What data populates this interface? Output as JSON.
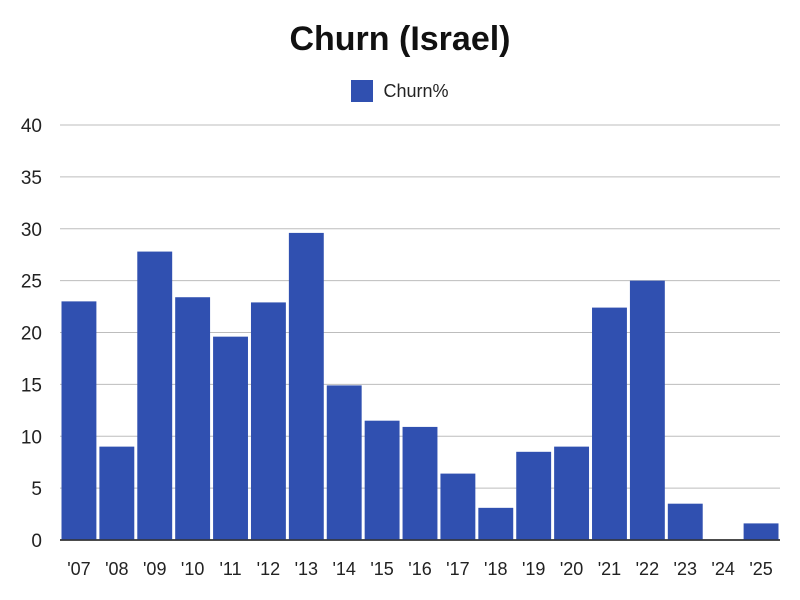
{
  "chart_data": {
    "type": "bar",
    "title": "Churn (Israel)",
    "categories": [
      "'07",
      "'08",
      "'09",
      "'10",
      "'11",
      "'12",
      "'13",
      "'14",
      "'15",
      "'16",
      "'17",
      "'18",
      "'19",
      "'20",
      "'21",
      "'22",
      "'23",
      "'24",
      "'25"
    ],
    "series": [
      {
        "name": "Churn%",
        "color": "#3050b0",
        "values": [
          23.0,
          9.0,
          27.8,
          23.4,
          19.6,
          22.9,
          29.6,
          14.9,
          11.5,
          10.9,
          6.4,
          3.1,
          8.5,
          9.0,
          22.4,
          25.0,
          3.5,
          0,
          1.6
        ]
      }
    ],
    "ylim": [
      0,
      40
    ],
    "yticks": [
      0,
      5,
      10,
      15,
      20,
      25,
      30,
      35,
      40
    ],
    "grid": true,
    "legend_position": "top-center"
  }
}
